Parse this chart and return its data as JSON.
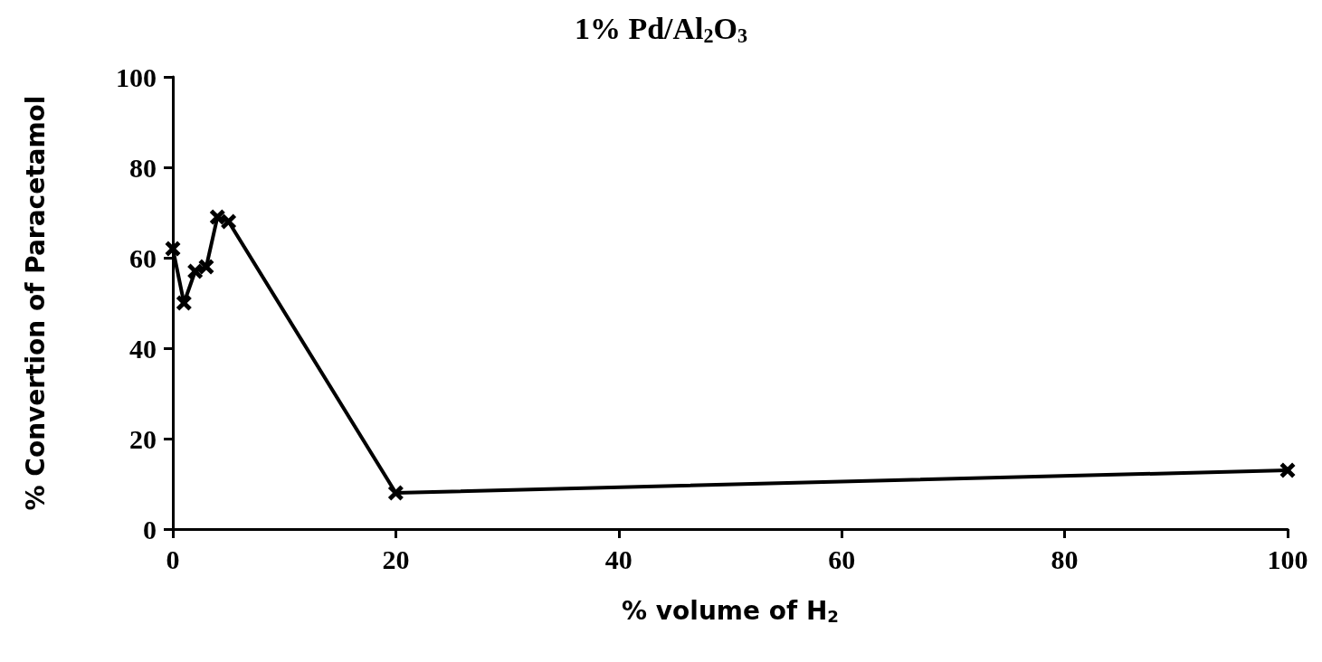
{
  "chart_data": {
    "type": "line",
    "title": "1% Pd/Al$_{2}$O$_{3}$",
    "xlabel": "% volume of H$_{2}$",
    "ylabel": "% Convertion of Paracetamol",
    "x": [
      0,
      1,
      2,
      3,
      4,
      5,
      20,
      100
    ],
    "series": [
      {
        "color": "#000000",
        "values": [
          62,
          50,
          57,
          58,
          69,
          68,
          8,
          13
        ]
      }
    ],
    "xlim": [
      0,
      100
    ],
    "xticks": [
      0,
      20,
      40,
      60,
      80,
      100
    ],
    "ylim": [
      0,
      100
    ],
    "yticks": [
      0,
      20,
      40,
      60,
      80,
      100
    ],
    "grid": false,
    "marker": "cross",
    "line_style": "solid"
  }
}
